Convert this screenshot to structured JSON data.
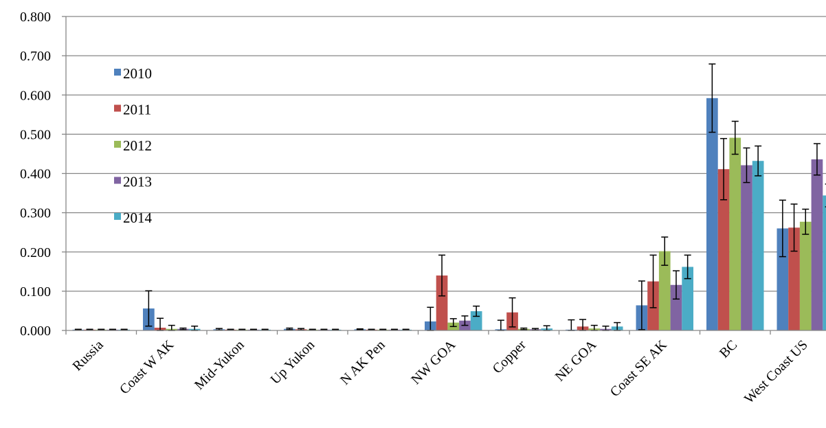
{
  "chart_data": {
    "type": "bar",
    "title": "",
    "xlabel": "",
    "ylabel": "",
    "ylim": [
      0,
      0.8
    ],
    "yticks": [
      "0.000",
      "0.100",
      "0.200",
      "0.300",
      "0.400",
      "0.500",
      "0.600",
      "0.700",
      "0.800"
    ],
    "grid": true,
    "legend_position": "upper-left",
    "categories": [
      "Russia",
      "Coast W AK",
      "Mid-Yukon",
      "Up Yukon",
      "N AK Pen",
      "NW GOA",
      "Copper",
      "NE GOA",
      "Coast SE AK",
      "BC",
      "West Coast US"
    ],
    "series": [
      {
        "name": "2010",
        "color": "#4F81BD",
        "values": [
          0.002,
          0.056,
          0.003,
          0.004,
          0.003,
          0.023,
          0.003,
          0.002,
          0.064,
          0.592,
          0.26
        ],
        "errors": [
          0.001,
          0.045,
          0.002,
          0.002,
          0.001,
          0.036,
          0.023,
          0.025,
          0.062,
          0.087,
          0.072
        ]
      },
      {
        "name": "2011",
        "color": "#C0504D",
        "values": [
          0.002,
          0.007,
          0.002,
          0.003,
          0.002,
          0.14,
          0.046,
          0.01,
          0.125,
          0.411,
          0.262
        ],
        "errors": [
          0.001,
          0.024,
          0.001,
          0.002,
          0.001,
          0.052,
          0.037,
          0.018,
          0.067,
          0.078,
          0.06
        ]
      },
      {
        "name": "2012",
        "color": "#9BBB59",
        "values": [
          0.002,
          0.004,
          0.002,
          0.002,
          0.002,
          0.02,
          0.004,
          0.005,
          0.202,
          0.491,
          0.277
        ],
        "errors": [
          0.001,
          0.009,
          0.001,
          0.001,
          0.001,
          0.01,
          0.002,
          0.008,
          0.036,
          0.042,
          0.032
        ]
      },
      {
        "name": "2013",
        "color": "#8064A2",
        "values": [
          0.002,
          0.004,
          0.002,
          0.002,
          0.002,
          0.025,
          0.003,
          0.004,
          0.116,
          0.421,
          0.436
        ],
        "errors": [
          0.001,
          0.002,
          0.001,
          0.001,
          0.001,
          0.012,
          0.002,
          0.007,
          0.036,
          0.044,
          0.04
        ]
      },
      {
        "name": "2014",
        "color": "#4BACC6",
        "values": [
          0.002,
          0.004,
          0.002,
          0.002,
          0.002,
          0.049,
          0.005,
          0.01,
          0.162,
          0.432,
          0.344
        ],
        "errors": [
          0.001,
          0.007,
          0.001,
          0.001,
          0.001,
          0.013,
          0.007,
          0.01,
          0.03,
          0.038,
          0.029
        ]
      }
    ]
  }
}
